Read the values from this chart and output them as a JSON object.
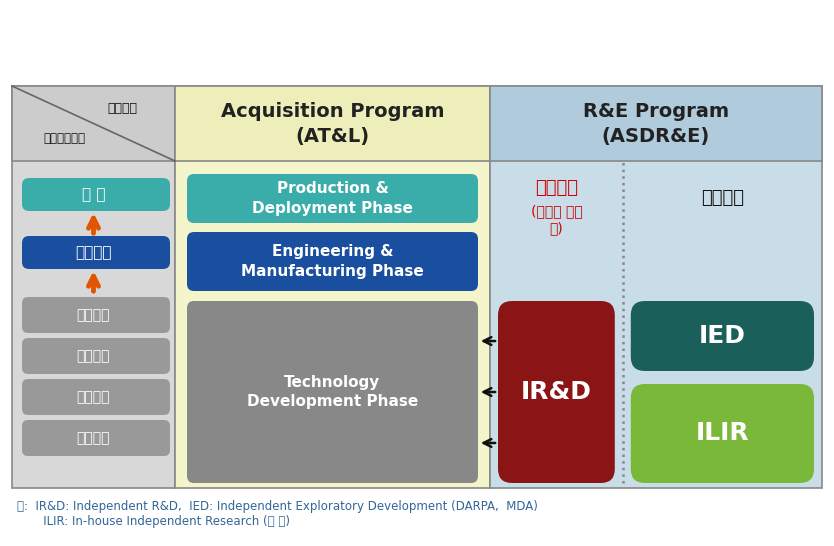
{
  "figsize": [
    8.34,
    5.46
  ],
  "dpi": 100,
  "bg_color": "#ffffff",
  "left_col_bg": "#d8d8d8",
  "mid_col_bg": "#f5f5cc",
  "right_col_bg": "#c8dde8",
  "header_left_bg": "#cccccc",
  "header_mid_bg": "#eeeebb",
  "header_right_bg": "#b0ccdc",
  "col_header_mid_text1": "Acquisition Program",
  "col_header_mid_text2": "(AT&L)",
  "col_header_right_text1": "R&E Program",
  "col_header_right_text2": "(ASDR&E)",
  "diag_text1": "프로그램",
  "diag_text2": "연구개발단계",
  "box_yangsan_text": "양 산",
  "box_yangsan_bg": "#3aadaa",
  "box_yangsan_fc": "#ffffff",
  "box_chegyedevelopment_text": "체계개발",
  "box_chegyedevelopment_bg": "#1a4fa0",
  "box_chegyedevelopment_fc": "#ffffff",
  "box_gray_labels": [
    "탐색개발",
    "시험개발",
    "응용연구",
    "기초연구"
  ],
  "box_gray_bg": "#999999",
  "box_gray_fc": "#ffffff",
  "prod_phase_text": "Production &\nDeployment Phase",
  "prod_phase_bg": "#3aadaa",
  "prod_phase_fc": "#ffffff",
  "eng_phase_text": "Engineering &\nManufacturing Phase",
  "eng_phase_bg": "#1a4fa0",
  "eng_phase_fc": "#ffffff",
  "tech_phase_text": "Technology\nDevelopment Phase",
  "tech_phase_bg": "#888888",
  "tech_phase_fc": "#ffffff",
  "ird_text": "IR&D",
  "ird_bg": "#8b1515",
  "ird_fc": "#ffffff",
  "ied_text": "IED",
  "ied_bg": "#1a5f5a",
  "ied_fc": "#ffffff",
  "ilir_text": "ILIR",
  "ilir_bg": "#7ab83a",
  "ilir_fc": "#ffffff",
  "upchejudo_text1": "업체주도",
  "upchejudo_text2": "(선투자 후보",
  "upchejudo_text3": "상)",
  "upchejudo_color": "#cc0000",
  "jeongbujudo_text": "정부주도",
  "jeongbujudo_color": "#111111",
  "footnote1": "주:  IR&D: Independent R&D,  IED: Independent Exploratory Development (DARPA,  MDA)",
  "footnote2": "       ILIR: In-house Independent Research (각 군)"
}
